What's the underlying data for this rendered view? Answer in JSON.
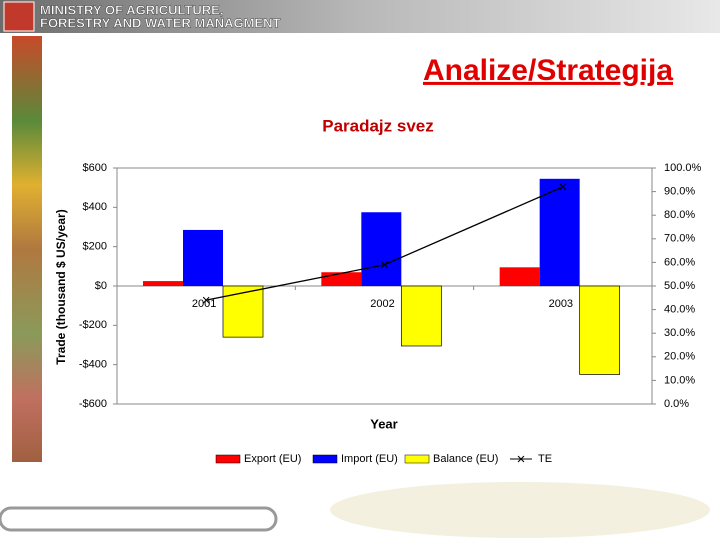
{
  "header": {
    "lines": [
      "MINISTRY OF AGRICULTURE,",
      "FORESTRY AND WATER MANAGMENT"
    ]
  },
  "slide_title": "Analize/Strategija",
  "chart_data": {
    "type": "bar",
    "title": "Paradajz svez",
    "x_label": "Year",
    "y_label": "Trade (thousand $ US/year)",
    "categories": [
      "2001",
      "2002",
      "2003"
    ],
    "series": [
      {
        "name": "Export (EU)",
        "color": "#ff0000",
        "values": [
          25,
          70,
          95
        ]
      },
      {
        "name": "Import (EU)",
        "color": "#0000ff",
        "values": [
          285,
          375,
          545
        ]
      },
      {
        "name": "Balance (EU)",
        "color": "#ffff00",
        "values": [
          -260,
          -305,
          -450
        ]
      },
      {
        "name": "TE",
        "color": "#000000",
        "type": "line",
        "axis": "y2",
        "marker": "x",
        "values": [
          44,
          59,
          92
        ]
      }
    ],
    "ylim": [
      -600,
      600
    ],
    "yticks": [
      {
        "value": 600,
        "label": "$600"
      },
      {
        "value": 400,
        "label": "$400"
      },
      {
        "value": 200,
        "label": "$200"
      },
      {
        "value": 0,
        "label": "$0"
      },
      {
        "value": -200,
        "label": "-$200"
      },
      {
        "value": -400,
        "label": "-$400"
      },
      {
        "value": -600,
        "label": "-$600"
      }
    ],
    "y2lim": [
      0,
      100
    ],
    "y2ticks": [
      {
        "value": 100,
        "label": "100.0%"
      },
      {
        "value": 90,
        "label": "90.0%"
      },
      {
        "value": 80,
        "label": "80.0%"
      },
      {
        "value": 70,
        "label": "70.0%"
      },
      {
        "value": 60,
        "label": "60.0%"
      },
      {
        "value": 50,
        "label": "50.0%"
      },
      {
        "value": 40,
        "label": "40.0%"
      },
      {
        "value": 30,
        "label": "30.0%"
      },
      {
        "value": 20,
        "label": "20.0%"
      },
      {
        "value": 10,
        "label": "10.0%"
      },
      {
        "value": 0,
        "label": "0.0%"
      }
    ],
    "grid": false,
    "legend": "bottom"
  }
}
